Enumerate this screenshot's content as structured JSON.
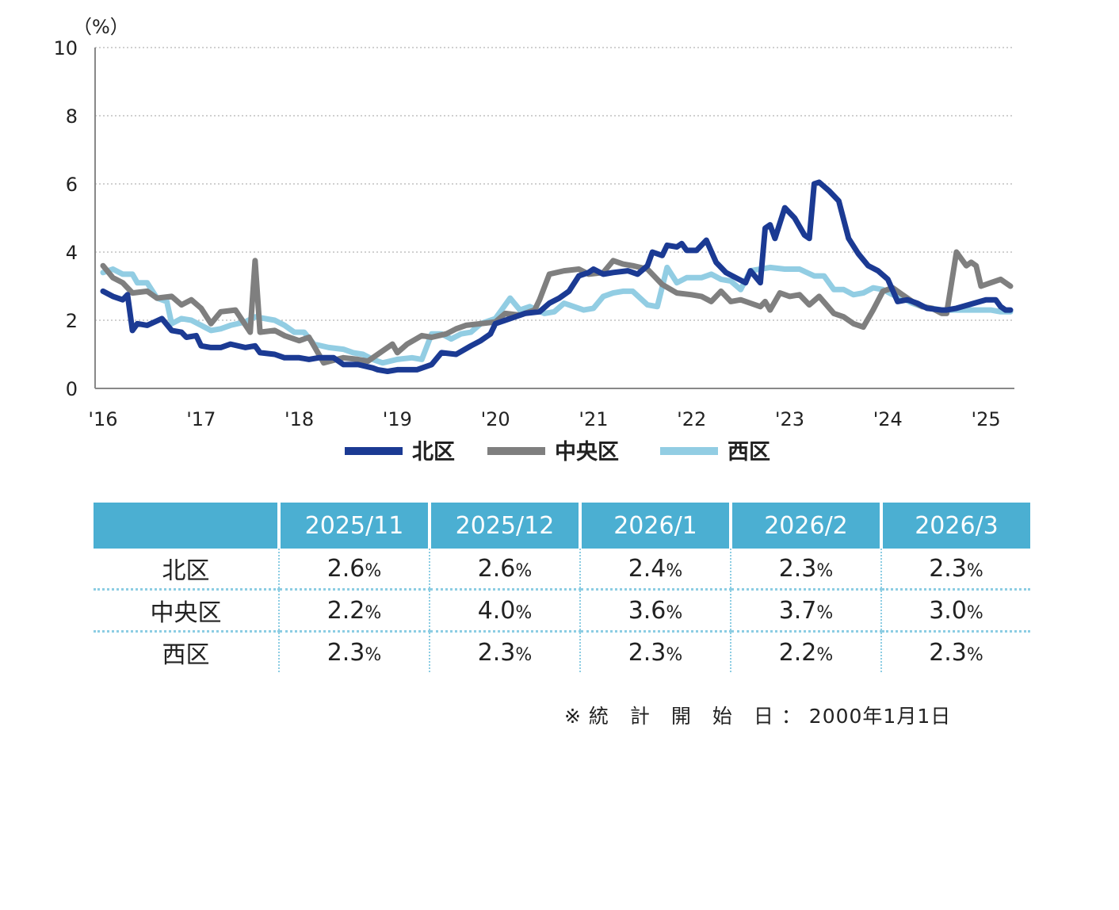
{
  "chart_data": {
    "type": "line",
    "unit_label": "（%）",
    "y_ticks": [
      "0",
      "2",
      "4",
      "6",
      "8",
      "10"
    ],
    "ylim": [
      0,
      10
    ],
    "grid": true,
    "x_start": 2016.0,
    "x_end": 2025.25,
    "x_ticks": [
      "'16",
      "'17",
      "'18",
      "'19",
      "'20",
      "'21",
      "'22",
      "'23",
      "'24",
      "'25"
    ],
    "legend_position": "bottom-center",
    "series": [
      {
        "name": "北区",
        "color": "#1b3a93",
        "values": [
          [
            2016.0,
            2.85
          ],
          [
            2016.1,
            2.7
          ],
          [
            2016.2,
            2.6
          ],
          [
            2016.25,
            2.75
          ],
          [
            2016.3,
            1.7
          ],
          [
            2016.35,
            1.9
          ],
          [
            2016.45,
            1.85
          ],
          [
            2016.6,
            2.05
          ],
          [
            2016.7,
            1.7
          ],
          [
            2016.8,
            1.65
          ],
          [
            2016.85,
            1.5
          ],
          [
            2016.95,
            1.55
          ],
          [
            2017.0,
            1.25
          ],
          [
            2017.1,
            1.2
          ],
          [
            2017.2,
            1.2
          ],
          [
            2017.3,
            1.3
          ],
          [
            2017.45,
            1.2
          ],
          [
            2017.55,
            1.25
          ],
          [
            2017.6,
            1.05
          ],
          [
            2017.75,
            1.0
          ],
          [
            2017.85,
            0.9
          ],
          [
            2018.0,
            0.9
          ],
          [
            2018.1,
            0.85
          ],
          [
            2018.2,
            0.9
          ],
          [
            2018.35,
            0.9
          ],
          [
            2018.45,
            0.7
          ],
          [
            2018.6,
            0.7
          ],
          [
            2018.75,
            0.6
          ],
          [
            2018.8,
            0.55
          ],
          [
            2018.9,
            0.5
          ],
          [
            2019.0,
            0.55
          ],
          [
            2019.2,
            0.55
          ],
          [
            2019.35,
            0.7
          ],
          [
            2019.45,
            1.05
          ],
          [
            2019.6,
            1.0
          ],
          [
            2019.75,
            1.25
          ],
          [
            2019.85,
            1.4
          ],
          [
            2019.95,
            1.6
          ],
          [
            2020.0,
            1.9
          ],
          [
            2020.15,
            2.05
          ],
          [
            2020.3,
            2.2
          ],
          [
            2020.45,
            2.25
          ],
          [
            2020.55,
            2.5
          ],
          [
            2020.65,
            2.65
          ],
          [
            2020.75,
            2.85
          ],
          [
            2020.85,
            3.3
          ],
          [
            2020.95,
            3.4
          ],
          [
            2021.0,
            3.5
          ],
          [
            2021.1,
            3.35
          ],
          [
            2021.2,
            3.4
          ],
          [
            2021.35,
            3.45
          ],
          [
            2021.45,
            3.35
          ],
          [
            2021.55,
            3.6
          ],
          [
            2021.6,
            4.0
          ],
          [
            2021.7,
            3.9
          ],
          [
            2021.75,
            4.2
          ],
          [
            2021.85,
            4.15
          ],
          [
            2021.9,
            4.25
          ],
          [
            2021.95,
            4.05
          ],
          [
            2022.05,
            4.05
          ],
          [
            2022.15,
            4.35
          ],
          [
            2022.25,
            3.7
          ],
          [
            2022.35,
            3.4
          ],
          [
            2022.45,
            3.25
          ],
          [
            2022.55,
            3.1
          ],
          [
            2022.6,
            3.45
          ],
          [
            2022.7,
            3.1
          ],
          [
            2022.75,
            4.7
          ],
          [
            2022.8,
            4.8
          ],
          [
            2022.85,
            4.4
          ],
          [
            2022.95,
            5.3
          ],
          [
            2023.05,
            5.0
          ],
          [
            2023.15,
            4.5
          ],
          [
            2023.2,
            4.4
          ],
          [
            2023.25,
            6.0
          ],
          [
            2023.3,
            6.05
          ],
          [
            2023.4,
            5.8
          ],
          [
            2023.5,
            5.5
          ],
          [
            2023.6,
            4.4
          ],
          [
            2023.7,
            3.95
          ],
          [
            2023.8,
            3.6
          ],
          [
            2023.9,
            3.45
          ],
          [
            2024.0,
            3.2
          ],
          [
            2024.1,
            2.55
          ],
          [
            2024.2,
            2.6
          ],
          [
            2024.3,
            2.5
          ],
          [
            2024.4,
            2.35
          ],
          [
            2024.55,
            2.3
          ],
          [
            2024.6,
            2.3
          ],
          [
            2024.7,
            2.35
          ],
          [
            2025.0,
            2.6
          ],
          [
            2025.1,
            2.6
          ],
          [
            2025.15,
            2.4
          ],
          [
            2025.2,
            2.3
          ],
          [
            2025.25,
            2.3
          ]
        ]
      },
      {
        "name": "中央区",
        "color": "#7f7f7f",
        "values": [
          [
            2016.0,
            3.6
          ],
          [
            2016.1,
            3.25
          ],
          [
            2016.2,
            3.1
          ],
          [
            2016.3,
            2.8
          ],
          [
            2016.45,
            2.85
          ],
          [
            2016.55,
            2.65
          ],
          [
            2016.7,
            2.7
          ],
          [
            2016.8,
            2.45
          ],
          [
            2016.9,
            2.6
          ],
          [
            2017.0,
            2.35
          ],
          [
            2017.1,
            1.9
          ],
          [
            2017.2,
            2.25
          ],
          [
            2017.35,
            2.3
          ],
          [
            2017.5,
            1.65
          ],
          [
            2017.55,
            3.75
          ],
          [
            2017.6,
            1.65
          ],
          [
            2017.75,
            1.7
          ],
          [
            2017.85,
            1.55
          ],
          [
            2018.0,
            1.4
          ],
          [
            2018.1,
            1.5
          ],
          [
            2018.25,
            0.75
          ],
          [
            2018.45,
            0.9
          ],
          [
            2018.6,
            0.85
          ],
          [
            2018.7,
            0.8
          ],
          [
            2018.8,
            1.0
          ],
          [
            2018.95,
            1.3
          ],
          [
            2019.0,
            1.05
          ],
          [
            2019.1,
            1.3
          ],
          [
            2019.25,
            1.55
          ],
          [
            2019.35,
            1.5
          ],
          [
            2019.5,
            1.6
          ],
          [
            2019.6,
            1.75
          ],
          [
            2019.7,
            1.85
          ],
          [
            2019.85,
            1.9
          ],
          [
            2020.0,
            1.95
          ],
          [
            2020.1,
            2.2
          ],
          [
            2020.25,
            2.15
          ],
          [
            2020.4,
            2.3
          ],
          [
            2020.45,
            2.6
          ],
          [
            2020.55,
            3.35
          ],
          [
            2020.7,
            3.45
          ],
          [
            2020.85,
            3.5
          ],
          [
            2020.95,
            3.35
          ],
          [
            2021.1,
            3.4
          ],
          [
            2021.2,
            3.75
          ],
          [
            2021.3,
            3.65
          ],
          [
            2021.4,
            3.6
          ],
          [
            2021.55,
            3.5
          ],
          [
            2021.7,
            3.05
          ],
          [
            2021.85,
            2.8
          ],
          [
            2022.0,
            2.75
          ],
          [
            2022.1,
            2.7
          ],
          [
            2022.2,
            2.55
          ],
          [
            2022.3,
            2.85
          ],
          [
            2022.4,
            2.55
          ],
          [
            2022.5,
            2.6
          ],
          [
            2022.6,
            2.5
          ],
          [
            2022.7,
            2.4
          ],
          [
            2022.75,
            2.55
          ],
          [
            2022.8,
            2.3
          ],
          [
            2022.9,
            2.8
          ],
          [
            2023.0,
            2.7
          ],
          [
            2023.1,
            2.75
          ],
          [
            2023.2,
            2.45
          ],
          [
            2023.3,
            2.7
          ],
          [
            2023.45,
            2.2
          ],
          [
            2023.55,
            2.1
          ],
          [
            2023.65,
            1.9
          ],
          [
            2023.75,
            1.8
          ],
          [
            2023.85,
            2.3
          ],
          [
            2023.95,
            2.85
          ],
          [
            2024.05,
            2.95
          ],
          [
            2024.15,
            2.75
          ],
          [
            2024.25,
            2.55
          ],
          [
            2024.35,
            2.4
          ],
          [
            2024.45,
            2.35
          ],
          [
            2024.55,
            2.2
          ],
          [
            2024.6,
            2.2
          ],
          [
            2024.7,
            4.0
          ],
          [
            2024.8,
            3.6
          ],
          [
            2024.85,
            3.7
          ],
          [
            2024.9,
            3.6
          ],
          [
            2024.95,
            3.0
          ],
          [
            2025.05,
            3.1
          ],
          [
            2025.15,
            3.2
          ],
          [
            2025.25,
            3.0
          ]
        ]
      },
      {
        "name": "西区",
        "color": "#92cde3",
        "values": [
          [
            2016.0,
            3.4
          ],
          [
            2016.1,
            3.5
          ],
          [
            2016.2,
            3.35
          ],
          [
            2016.3,
            3.35
          ],
          [
            2016.35,
            3.1
          ],
          [
            2016.45,
            3.1
          ],
          [
            2016.55,
            2.65
          ],
          [
            2016.65,
            2.55
          ],
          [
            2016.7,
            1.9
          ],
          [
            2016.8,
            2.05
          ],
          [
            2016.9,
            2.0
          ],
          [
            2017.0,
            1.85
          ],
          [
            2017.1,
            1.7
          ],
          [
            2017.2,
            1.75
          ],
          [
            2017.3,
            1.85
          ],
          [
            2017.45,
            1.95
          ],
          [
            2017.55,
            2.1
          ],
          [
            2017.75,
            2.0
          ],
          [
            2017.85,
            1.85
          ],
          [
            2017.95,
            1.65
          ],
          [
            2018.05,
            1.65
          ],
          [
            2018.15,
            1.3
          ],
          [
            2018.3,
            1.2
          ],
          [
            2018.45,
            1.15
          ],
          [
            2018.55,
            1.05
          ],
          [
            2018.65,
            1.0
          ],
          [
            2018.75,
            0.85
          ],
          [
            2018.85,
            0.75
          ],
          [
            2019.0,
            0.85
          ],
          [
            2019.15,
            0.9
          ],
          [
            2019.25,
            0.85
          ],
          [
            2019.35,
            1.6
          ],
          [
            2019.45,
            1.6
          ],
          [
            2019.55,
            1.45
          ],
          [
            2019.65,
            1.6
          ],
          [
            2019.75,
            1.65
          ],
          [
            2019.85,
            1.9
          ],
          [
            2020.0,
            2.05
          ],
          [
            2020.15,
            2.65
          ],
          [
            2020.25,
            2.3
          ],
          [
            2020.35,
            2.4
          ],
          [
            2020.5,
            2.2
          ],
          [
            2020.6,
            2.25
          ],
          [
            2020.7,
            2.5
          ],
          [
            2020.8,
            2.4
          ],
          [
            2020.9,
            2.3
          ],
          [
            2021.0,
            2.35
          ],
          [
            2021.1,
            2.7
          ],
          [
            2021.2,
            2.8
          ],
          [
            2021.3,
            2.85
          ],
          [
            2021.4,
            2.85
          ],
          [
            2021.55,
            2.45
          ],
          [
            2021.65,
            2.4
          ],
          [
            2021.75,
            3.55
          ],
          [
            2021.85,
            3.1
          ],
          [
            2021.95,
            3.25
          ],
          [
            2022.1,
            3.25
          ],
          [
            2022.2,
            3.35
          ],
          [
            2022.3,
            3.2
          ],
          [
            2022.4,
            3.15
          ],
          [
            2022.5,
            2.9
          ],
          [
            2022.6,
            3.45
          ],
          [
            2022.7,
            3.5
          ],
          [
            2022.8,
            3.55
          ],
          [
            2022.95,
            3.5
          ],
          [
            2023.1,
            3.5
          ],
          [
            2023.25,
            3.3
          ],
          [
            2023.35,
            3.3
          ],
          [
            2023.45,
            2.9
          ],
          [
            2023.55,
            2.9
          ],
          [
            2023.65,
            2.75
          ],
          [
            2023.75,
            2.8
          ],
          [
            2023.85,
            2.95
          ],
          [
            2023.95,
            2.9
          ],
          [
            2024.05,
            2.75
          ],
          [
            2024.15,
            2.65
          ],
          [
            2024.25,
            2.5
          ],
          [
            2024.35,
            2.4
          ],
          [
            2024.45,
            2.35
          ],
          [
            2024.55,
            2.3
          ],
          [
            2024.65,
            2.3
          ],
          [
            2024.75,
            2.3
          ],
          [
            2024.85,
            2.3
          ],
          [
            2024.95,
            2.3
          ],
          [
            2025.05,
            2.3
          ],
          [
            2025.15,
            2.25
          ],
          [
            2025.25,
            2.25
          ]
        ]
      }
    ]
  },
  "table": {
    "headers": [
      "",
      "2025/11",
      "2025/12",
      "2026/1",
      "2026/2",
      "2026/3"
    ],
    "unit": "%",
    "rows": [
      {
        "label": "北区",
        "values": [
          "2.6",
          "2.6",
          "2.4",
          "2.3",
          "2.3"
        ]
      },
      {
        "label": "中央区",
        "values": [
          "2.2",
          "4.0",
          "3.6",
          "3.7",
          "3.0"
        ]
      },
      {
        "label": "西区",
        "values": [
          "2.3",
          "2.3",
          "2.3",
          "2.2",
          "2.3"
        ]
      }
    ]
  },
  "footnote": "※ 統　計　開　始　日 ： 2000年1月1日"
}
